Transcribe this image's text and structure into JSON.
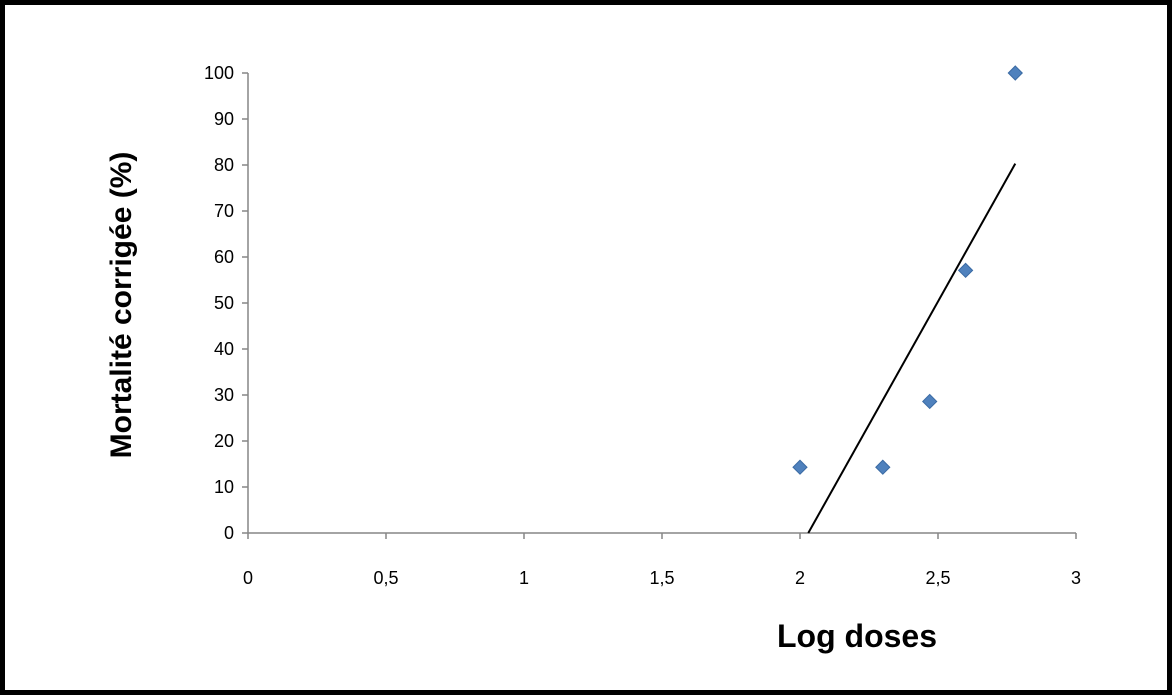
{
  "chart_data": {
    "type": "scatter",
    "xlabel": "Log doses",
    "ylabel": "Mortalité corrigée (%)",
    "xlim": [
      0,
      3
    ],
    "ylim": [
      0,
      100
    ],
    "x_ticks": [
      0,
      0.5,
      1,
      1.5,
      2,
      2.5,
      3
    ],
    "x_tick_labels": [
      "0",
      "0,5",
      "1",
      "1,5",
      "2",
      "2,5",
      "3"
    ],
    "y_ticks": [
      0,
      10,
      20,
      30,
      40,
      50,
      60,
      70,
      80,
      90,
      100
    ],
    "y_tick_labels": [
      "0",
      "10",
      "20",
      "30",
      "40",
      "50",
      "60",
      "70",
      "80",
      "90",
      "100"
    ],
    "grid": false,
    "legend": "none",
    "series": [
      {
        "color": "#4f81bd",
        "marker": "diamond",
        "x": [
          2.0,
          2.3,
          2.47,
          2.6,
          2.78
        ],
        "y": [
          14.3,
          14.3,
          28.6,
          57.1,
          100
        ]
      }
    ],
    "trendline": {
      "type": "linear",
      "color": "#000000",
      "x": [
        2.03,
        2.78
      ],
      "y": [
        0,
        80.3
      ]
    }
  }
}
